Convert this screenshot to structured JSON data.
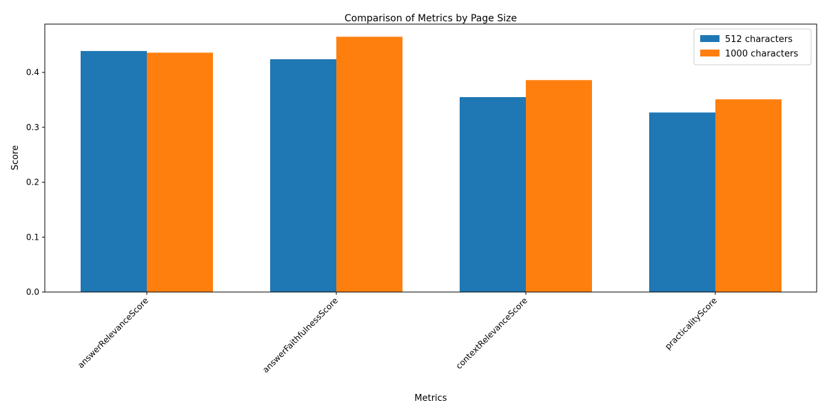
{
  "chart_data": {
    "type": "bar",
    "title": "Comparison of Metrics by Page Size",
    "xlabel": "Metrics",
    "ylabel": "Score",
    "categories": [
      "answerRelevanceScore",
      "answerFaithfulnessScore",
      "contextRelevanceScore",
      "practicalityScore"
    ],
    "series": [
      {
        "name": "512 characters",
        "color": "#1f77b4",
        "values": [
          0.439,
          0.424,
          0.355,
          0.327
        ]
      },
      {
        "name": "1000 characters",
        "color": "#ff7f0e",
        "values": [
          0.436,
          0.465,
          0.386,
          0.351
        ]
      }
    ],
    "ylim": [
      0,
      0.488
    ],
    "yticks": [
      "0.0",
      "0.1",
      "0.2",
      "0.3",
      "0.4"
    ],
    "grid": false,
    "legend_position": "top-right",
    "xtick_rotation": "45°"
  }
}
